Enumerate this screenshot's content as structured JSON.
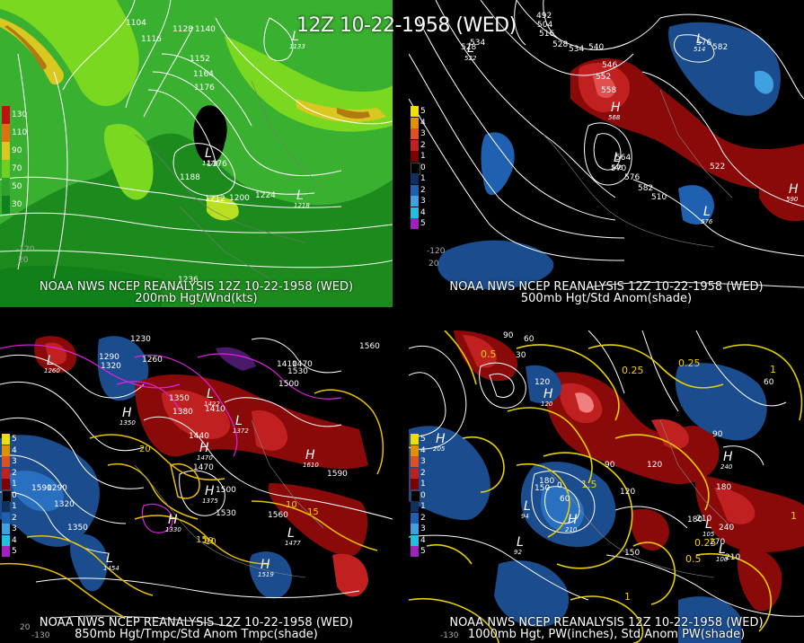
{
  "title": "12Z 10-22-1958 (WED)",
  "panels": [
    {
      "source": "NOAA NWS NCEP REANALYSIS 12Z 10-22-1958 (WED)",
      "subtitle": "200mb Hgt/Wnd(kts)",
      "legend": {
        "labels": [
          "130",
          "110",
          "90",
          "70",
          "50",
          "30"
        ],
        "colors": [
          "#c01010",
          "#e07010",
          "#d8c820",
          "#70d020",
          "#30a030",
          "#108020"
        ]
      },
      "contours": [
        "1104",
        "1116",
        "1128",
        "1140",
        "1152",
        "1164",
        "1176",
        "1188",
        "1200",
        "1212",
        "1224",
        "1236",
        "1176"
      ],
      "centers": [
        {
          "type": "L",
          "value": "1133"
        },
        {
          "type": "L",
          "value": "1176"
        },
        {
          "type": "L",
          "value": "1218"
        }
      ],
      "lon_labels": [
        "-120",
        "20"
      ]
    },
    {
      "source": "NOAA NWS NCEP REANALYSIS 12Z 10-22-1958 (WED)",
      "subtitle": "500mb Hgt/Std Anom(shade)",
      "legend": {
        "labels": [
          "5",
          "4",
          "3",
          "2",
          "1",
          "0",
          "1",
          "2",
          "3",
          "4",
          "5"
        ],
        "colors": [
          "#f0e000",
          "#e09000",
          "#e05020",
          "#c02020",
          "#800000",
          "#000000",
          "#103060",
          "#2060b0",
          "#40a0e0",
          "#20c0e0",
          "#a020c0"
        ]
      },
      "contours": [
        "492",
        "504",
        "516",
        "528",
        "534",
        "540",
        "546",
        "552",
        "558",
        "564",
        "570",
        "576",
        "582",
        "510",
        "522",
        "528",
        "534",
        "576",
        "582"
      ],
      "centers": [
        {
          "type": "L",
          "value": "522"
        },
        {
          "type": "L",
          "value": "514"
        },
        {
          "type": "H",
          "value": "568"
        },
        {
          "type": "L",
          "value": "546"
        },
        {
          "type": "H",
          "value": "590"
        },
        {
          "type": "L",
          "value": "576"
        }
      ],
      "lon_labels": [
        "-120",
        "20"
      ]
    },
    {
      "source": "NOAA NWS NCEP REANALYSIS 12Z 10-22-1958 (WED)",
      "subtitle": "850mb Hgt/Tmpc/Std Anom Tmpc(shade)",
      "legend": {
        "labels": [
          "5",
          "4",
          "3",
          "2",
          "1",
          "0",
          "1",
          "2",
          "3",
          "4",
          "5"
        ],
        "colors": [
          "#f0e000",
          "#e09000",
          "#e05020",
          "#c02020",
          "#800000",
          "#000000",
          "#103060",
          "#2060b0",
          "#40a0e0",
          "#20c0e0",
          "#a020c0"
        ]
      },
      "contours": [
        "1230",
        "1290",
        "1320",
        "1260",
        "1350",
        "1380",
        "1410",
        "1440",
        "1470",
        "1500",
        "1530",
        "1560",
        "1590",
        "1290",
        "1320",
        "1350",
        "1410",
        "1470",
        "1500",
        "1530",
        "1560",
        "1590"
      ],
      "temps": [
        "20",
        "10",
        "10",
        "15",
        "10",
        "15"
      ],
      "centers": [
        {
          "type": "L",
          "value": "1260"
        },
        {
          "type": "H",
          "value": "1350"
        },
        {
          "type": "H",
          "value": "1470"
        },
        {
          "type": "L",
          "value": "1422"
        },
        {
          "type": "L",
          "value": "1372"
        },
        {
          "type": "H",
          "value": "1610"
        },
        {
          "type": "H",
          "value": "1330"
        },
        {
          "type": "H",
          "value": "1375"
        },
        {
          "type": "L",
          "value": "1454"
        },
        {
          "type": "L",
          "value": "1477"
        },
        {
          "type": "H",
          "value": "1519"
        }
      ],
      "lon_labels": [
        "-130",
        "20"
      ]
    },
    {
      "source": "NOAA NWS NCEP REANALYSIS 12Z 10-22-1958 (WED)",
      "subtitle": "1000mb Hgt, PW(inches), Std Anom PW(shade)",
      "legend": {
        "labels": [
          "5",
          "4",
          "3",
          "2",
          "1",
          "0",
          "1",
          "2",
          "3",
          "4",
          "5"
        ],
        "colors": [
          "#f0e000",
          "#e09000",
          "#e05020",
          "#c02020",
          "#800000",
          "#000000",
          "#103060",
          "#2060b0",
          "#40a0e0",
          "#20c0e0",
          "#a020c0"
        ]
      },
      "contours": [
        "90",
        "60",
        "30",
        "120",
        "180",
        "150",
        "0",
        "60",
        "90",
        "120",
        "180",
        "210",
        "240",
        "270",
        "210",
        "180",
        "90",
        "60",
        "120",
        "150"
      ],
      "pw": [
        "0.5",
        "0.25",
        "0.25",
        "1",
        "1.5",
        "1",
        "0.25",
        "0.5",
        "1"
      ],
      "centers": [
        {
          "type": "H",
          "value": "205"
        },
        {
          "type": "H",
          "value": "120"
        },
        {
          "type": "L",
          "value": "94"
        },
        {
          "type": "H",
          "value": "210"
        },
        {
          "type": "L",
          "value": "92"
        },
        {
          "type": "L",
          "value": "105"
        },
        {
          "type": "H",
          "value": "240"
        },
        {
          "type": "L",
          "value": "100"
        }
      ],
      "lon_labels": [
        "-130"
      ]
    }
  ]
}
